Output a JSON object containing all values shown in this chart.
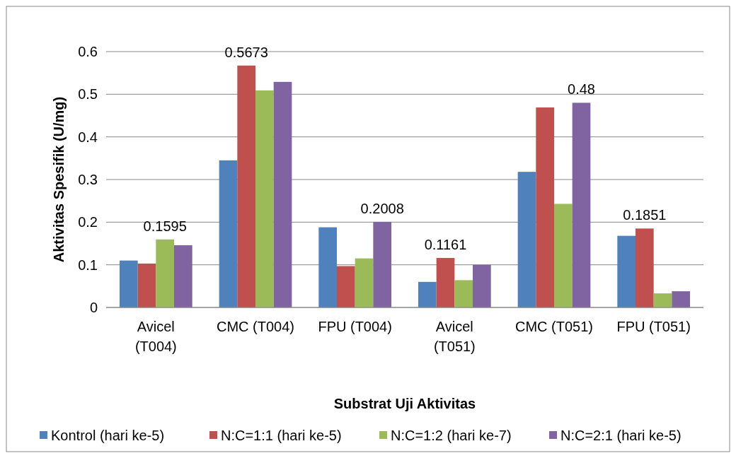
{
  "chart_data": {
    "type": "bar",
    "xlabel": "Substrat Uji Aktivitas",
    "ylabel": "Aktivitas Spesifik (U/mg)",
    "categories": [
      "Avicel (T004)",
      "CMC (T004)",
      "FPU (T004)",
      "Avicel (T051)",
      "CMC (T051)",
      "FPU (T051)"
    ],
    "series": [
      {
        "name": "Kontrol (hari ke-5)",
        "color": "#4f81bd",
        "values": [
          0.11,
          0.345,
          0.188,
          0.06,
          0.318,
          0.168
        ],
        "value_labels": [
          null,
          null,
          null,
          null,
          null,
          null
        ]
      },
      {
        "name": "N:C=1:1 (hari ke-5)",
        "color": "#c0504d",
        "values": [
          0.103,
          0.5673,
          0.097,
          0.1161,
          0.469,
          0.1851
        ],
        "value_labels": [
          null,
          "0.5673",
          null,
          "0.1161",
          null,
          "0.1851"
        ]
      },
      {
        "name": "N:C=1:2 (hari ke-7)",
        "color": "#9bbb59",
        "values": [
          0.1595,
          0.509,
          0.115,
          0.064,
          0.243,
          0.033
        ],
        "value_labels": [
          "0.1595",
          null,
          null,
          null,
          null,
          null
        ]
      },
      {
        "name": "N:C=2:1 (hari ke-5)",
        "color": "#8064a2",
        "values": [
          0.146,
          0.529,
          0.2008,
          0.1,
          0.48,
          0.038
        ],
        "value_labels": [
          null,
          null,
          "0.2008",
          null,
          "0.48",
          null
        ]
      }
    ],
    "ylim": [
      0,
      0.6
    ],
    "yticks": [
      0,
      0.1,
      0.2,
      0.3,
      0.4,
      0.5,
      0.6
    ],
    "grid": "y",
    "legend": "bottom"
  }
}
